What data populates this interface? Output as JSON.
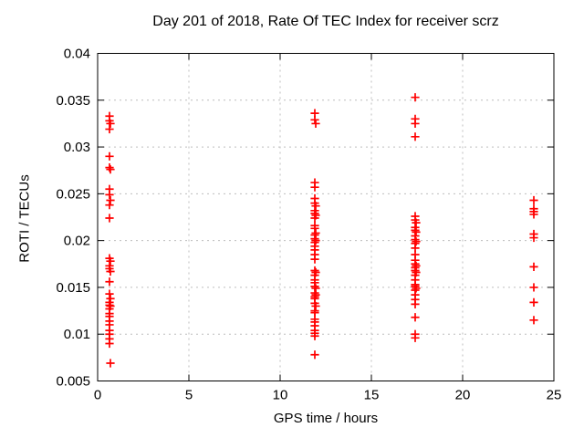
{
  "colors": {
    "background": "#ffffff",
    "border": "#000000",
    "grid": "#bdbdbd",
    "marker": "#ff0000",
    "text": "#000000"
  },
  "chart_data": {
    "type": "scatter",
    "title": "Day 201 of 2018, Rate Of TEC Index for receiver scrz",
    "xlabel": "GPS time / hours",
    "ylabel": "ROTI / TECUs",
    "xlim": [
      0,
      25
    ],
    "ylim": [
      0.005,
      0.04
    ],
    "xticks": [
      0,
      5,
      10,
      15,
      20,
      25
    ],
    "xtick_labels": [
      "0",
      "5",
      "10",
      "15",
      "20",
      "25"
    ],
    "yticks": [
      0.005,
      0.01,
      0.015,
      0.02,
      0.025,
      0.03,
      0.035,
      0.04
    ],
    "ytick_labels": [
      "0.005",
      "0.01",
      "0.015",
      "0.02",
      "0.025",
      "0.03",
      "0.035",
      "0.04"
    ],
    "grid": true,
    "grid_style": "dashed-gray",
    "legend": "none",
    "marker": "plus",
    "marker_color": "#ff0000",
    "series": [
      {
        "name": "ROTI",
        "points": [
          [
            0.65,
            0.0333
          ],
          [
            0.65,
            0.0328
          ],
          [
            0.7,
            0.0325
          ],
          [
            0.65,
            0.0319
          ],
          [
            0.65,
            0.029
          ],
          [
            0.65,
            0.0278
          ],
          [
            0.7,
            0.0276
          ],
          [
            0.65,
            0.0255
          ],
          [
            0.65,
            0.0249
          ],
          [
            0.7,
            0.0243
          ],
          [
            0.65,
            0.0238
          ],
          [
            0.65,
            0.0224
          ],
          [
            0.65,
            0.0181
          ],
          [
            0.7,
            0.0178
          ],
          [
            0.65,
            0.0173
          ],
          [
            0.65,
            0.017
          ],
          [
            0.7,
            0.0167
          ],
          [
            0.65,
            0.0156
          ],
          [
            0.65,
            0.0143
          ],
          [
            0.7,
            0.0138
          ],
          [
            0.65,
            0.0134
          ],
          [
            0.65,
            0.0131
          ],
          [
            0.7,
            0.013
          ],
          [
            0.65,
            0.0127
          ],
          [
            0.65,
            0.0122
          ],
          [
            0.65,
            0.0119
          ],
          [
            0.65,
            0.0114
          ],
          [
            0.65,
            0.011
          ],
          [
            0.65,
            0.0104
          ],
          [
            0.65,
            0.01
          ],
          [
            0.65,
            0.0095
          ],
          [
            0.65,
            0.009
          ],
          [
            0.7,
            0.0069
          ],
          [
            11.9,
            0.0336
          ],
          [
            11.9,
            0.0329
          ],
          [
            11.95,
            0.0325
          ],
          [
            11.9,
            0.0262
          ],
          [
            11.9,
            0.0257
          ],
          [
            11.9,
            0.0245
          ],
          [
            11.9,
            0.024
          ],
          [
            11.95,
            0.0237
          ],
          [
            11.9,
            0.0232
          ],
          [
            11.9,
            0.0229
          ],
          [
            11.95,
            0.0227
          ],
          [
            11.9,
            0.0224
          ],
          [
            11.9,
            0.0216
          ],
          [
            11.9,
            0.0213
          ],
          [
            11.95,
            0.0208
          ],
          [
            11.9,
            0.0206
          ],
          [
            11.9,
            0.0202
          ],
          [
            11.95,
            0.02
          ],
          [
            11.9,
            0.0198
          ],
          [
            11.9,
            0.0194
          ],
          [
            11.9,
            0.019
          ],
          [
            11.9,
            0.0185
          ],
          [
            11.9,
            0.018
          ],
          [
            11.9,
            0.0168
          ],
          [
            11.95,
            0.0166
          ],
          [
            11.9,
            0.0163
          ],
          [
            11.9,
            0.0158
          ],
          [
            11.9,
            0.0155
          ],
          [
            11.9,
            0.0151
          ],
          [
            11.95,
            0.0149
          ],
          [
            11.9,
            0.0144
          ],
          [
            11.95,
            0.0142
          ],
          [
            11.9,
            0.014
          ],
          [
            11.9,
            0.0138
          ],
          [
            11.9,
            0.0133
          ],
          [
            11.95,
            0.013
          ],
          [
            11.9,
            0.0125
          ],
          [
            11.9,
            0.0123
          ],
          [
            11.9,
            0.0116
          ],
          [
            11.9,
            0.0113
          ],
          [
            11.9,
            0.0109
          ],
          [
            11.9,
            0.0104
          ],
          [
            11.9,
            0.0101
          ],
          [
            11.9,
            0.0098
          ],
          [
            11.9,
            0.0078
          ],
          [
            17.4,
            0.0353
          ],
          [
            17.4,
            0.033
          ],
          [
            17.4,
            0.0325
          ],
          [
            17.4,
            0.0311
          ],
          [
            17.4,
            0.0226
          ],
          [
            17.4,
            0.0222
          ],
          [
            17.45,
            0.0219
          ],
          [
            17.4,
            0.0214
          ],
          [
            17.4,
            0.0211
          ],
          [
            17.45,
            0.0209
          ],
          [
            17.4,
            0.0205
          ],
          [
            17.4,
            0.0201
          ],
          [
            17.45,
            0.0199
          ],
          [
            17.4,
            0.0197
          ],
          [
            17.4,
            0.0192
          ],
          [
            17.4,
            0.0185
          ],
          [
            17.4,
            0.0179
          ],
          [
            17.4,
            0.0175
          ],
          [
            17.45,
            0.0173
          ],
          [
            17.4,
            0.0171
          ],
          [
            17.4,
            0.0168
          ],
          [
            17.45,
            0.0166
          ],
          [
            17.4,
            0.0163
          ],
          [
            17.4,
            0.0158
          ],
          [
            17.4,
            0.0153
          ],
          [
            17.4,
            0.0151
          ],
          [
            17.45,
            0.0149
          ],
          [
            17.4,
            0.0147
          ],
          [
            17.4,
            0.0142
          ],
          [
            17.4,
            0.0137
          ],
          [
            17.4,
            0.0132
          ],
          [
            17.4,
            0.0118
          ],
          [
            17.4,
            0.01
          ],
          [
            17.4,
            0.0096
          ],
          [
            23.9,
            0.0243
          ],
          [
            23.9,
            0.0234
          ],
          [
            23.9,
            0.0231
          ],
          [
            23.9,
            0.0228
          ],
          [
            23.9,
            0.0207
          ],
          [
            23.9,
            0.0203
          ],
          [
            23.9,
            0.0172
          ],
          [
            23.9,
            0.015
          ],
          [
            23.9,
            0.0134
          ],
          [
            23.9,
            0.0115
          ]
        ]
      }
    ]
  }
}
